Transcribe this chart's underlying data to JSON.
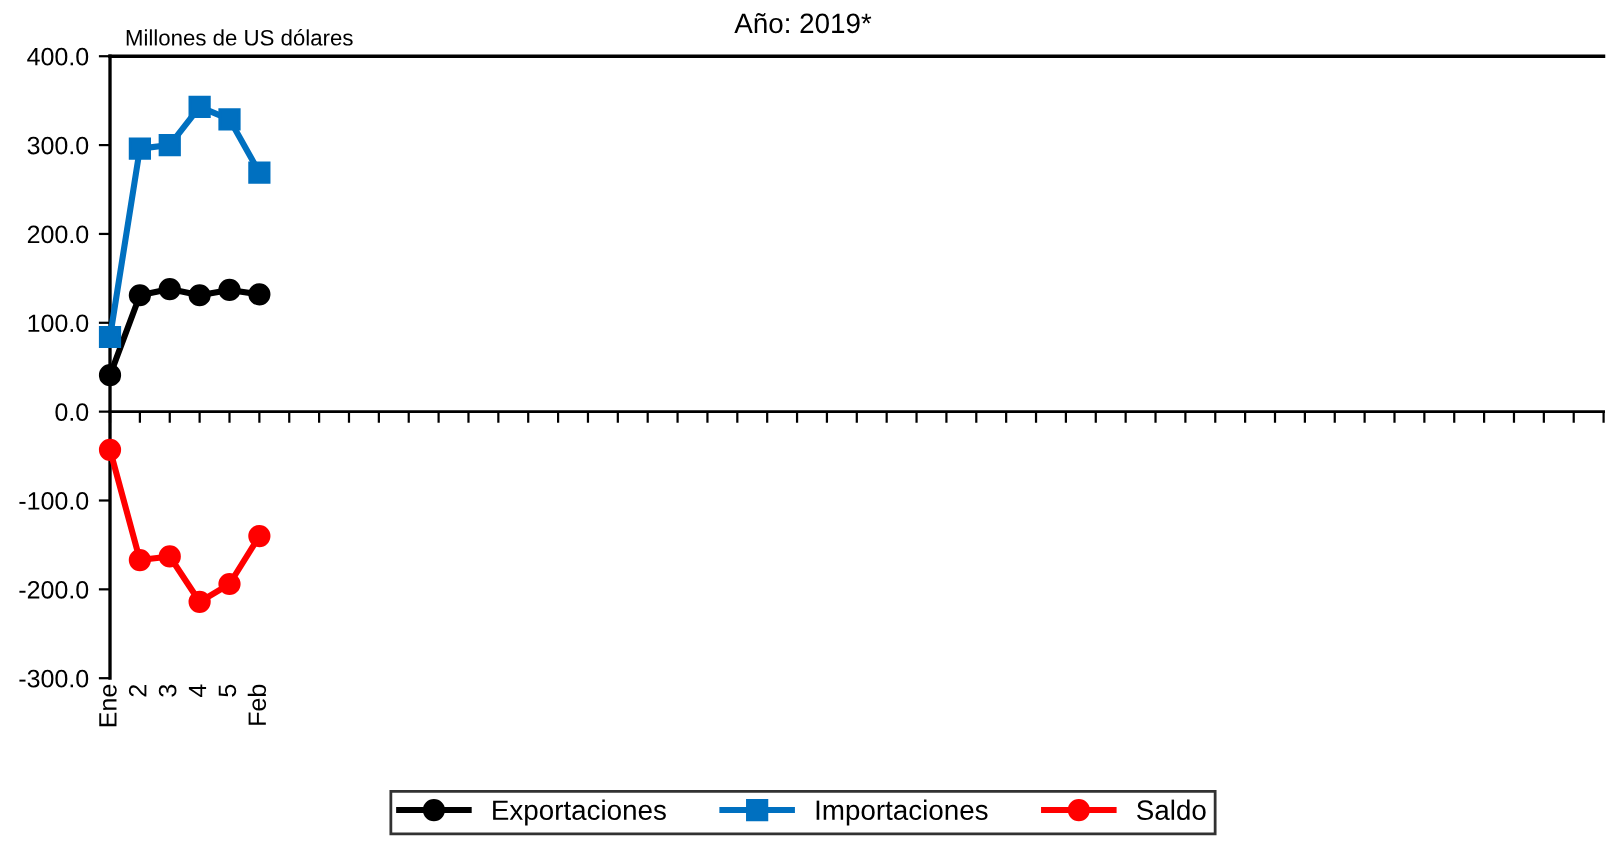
{
  "chart_data": {
    "type": "line",
    "title": "Año: 2019*",
    "ylabel": "Millones de US dólares",
    "categories": [
      "Ene",
      "2",
      "3",
      "4",
      "5",
      "Feb",
      null,
      null,
      null,
      null,
      null,
      null,
      null,
      null,
      null,
      null,
      null,
      null,
      null,
      null,
      null,
      null,
      null,
      null,
      null,
      null,
      null,
      null,
      null,
      null,
      null,
      null,
      null,
      null,
      null,
      null,
      null,
      null,
      null,
      null,
      null,
      null,
      null,
      null,
      null,
      null,
      null,
      null,
      null,
      null,
      null
    ],
    "series": [
      {
        "name": "Exportaciones",
        "color": "#000000",
        "marker": "circle",
        "values": [
          41,
          131,
          138,
          131,
          137,
          132,
          null,
          null,
          null,
          null,
          null,
          null,
          null,
          null,
          null,
          null,
          null,
          null,
          null,
          null,
          null,
          null,
          null,
          null,
          null,
          null,
          null,
          null,
          null,
          null,
          null,
          null,
          null,
          null,
          null,
          null,
          null,
          null,
          null,
          null,
          null,
          null,
          null,
          null,
          null,
          null,
          null,
          null,
          null,
          null,
          null
        ]
      },
      {
        "name": "Importaciones",
        "color": "#0070c0",
        "marker": "square",
        "values": [
          84,
          296,
          300,
          343,
          329,
          269,
          null,
          null,
          null,
          null,
          null,
          null,
          null,
          null,
          null,
          null,
          null,
          null,
          null,
          null,
          null,
          null,
          null,
          null,
          null,
          null,
          null,
          null,
          null,
          null,
          null,
          null,
          null,
          null,
          null,
          null,
          null,
          null,
          null,
          null,
          null,
          null,
          null,
          null,
          null,
          null,
          null,
          null,
          null,
          null,
          null
        ]
      },
      {
        "name": "Saldo",
        "color": "#ff0000",
        "marker": "circle",
        "values": [
          -43,
          -167,
          -163,
          -214,
          -194,
          -140,
          null,
          null,
          null,
          null,
          null,
          null,
          null,
          null,
          null,
          null,
          null,
          null,
          null,
          null,
          null,
          null,
          null,
          null,
          null,
          null,
          null,
          null,
          null,
          null,
          null,
          null,
          null,
          null,
          null,
          null,
          null,
          null,
          null,
          null,
          null,
          null,
          null,
          null,
          null,
          null,
          null,
          null,
          null,
          null,
          null
        ]
      }
    ],
    "ylim": [
      -300,
      400
    ],
    "yticks": [
      {
        "value": -300,
        "label": "-300.0"
      },
      {
        "value": -200,
        "label": "-200.0"
      },
      {
        "value": -100,
        "label": "-100.0"
      },
      {
        "value": 0,
        "label": "0.0"
      },
      {
        "value": 100,
        "label": "100.0"
      },
      {
        "value": 200,
        "label": "200.0"
      },
      {
        "value": 300,
        "label": "300.0"
      },
      {
        "value": 400,
        "label": "400.0"
      }
    ],
    "legend": "bottom",
    "line_style": "solid"
  }
}
